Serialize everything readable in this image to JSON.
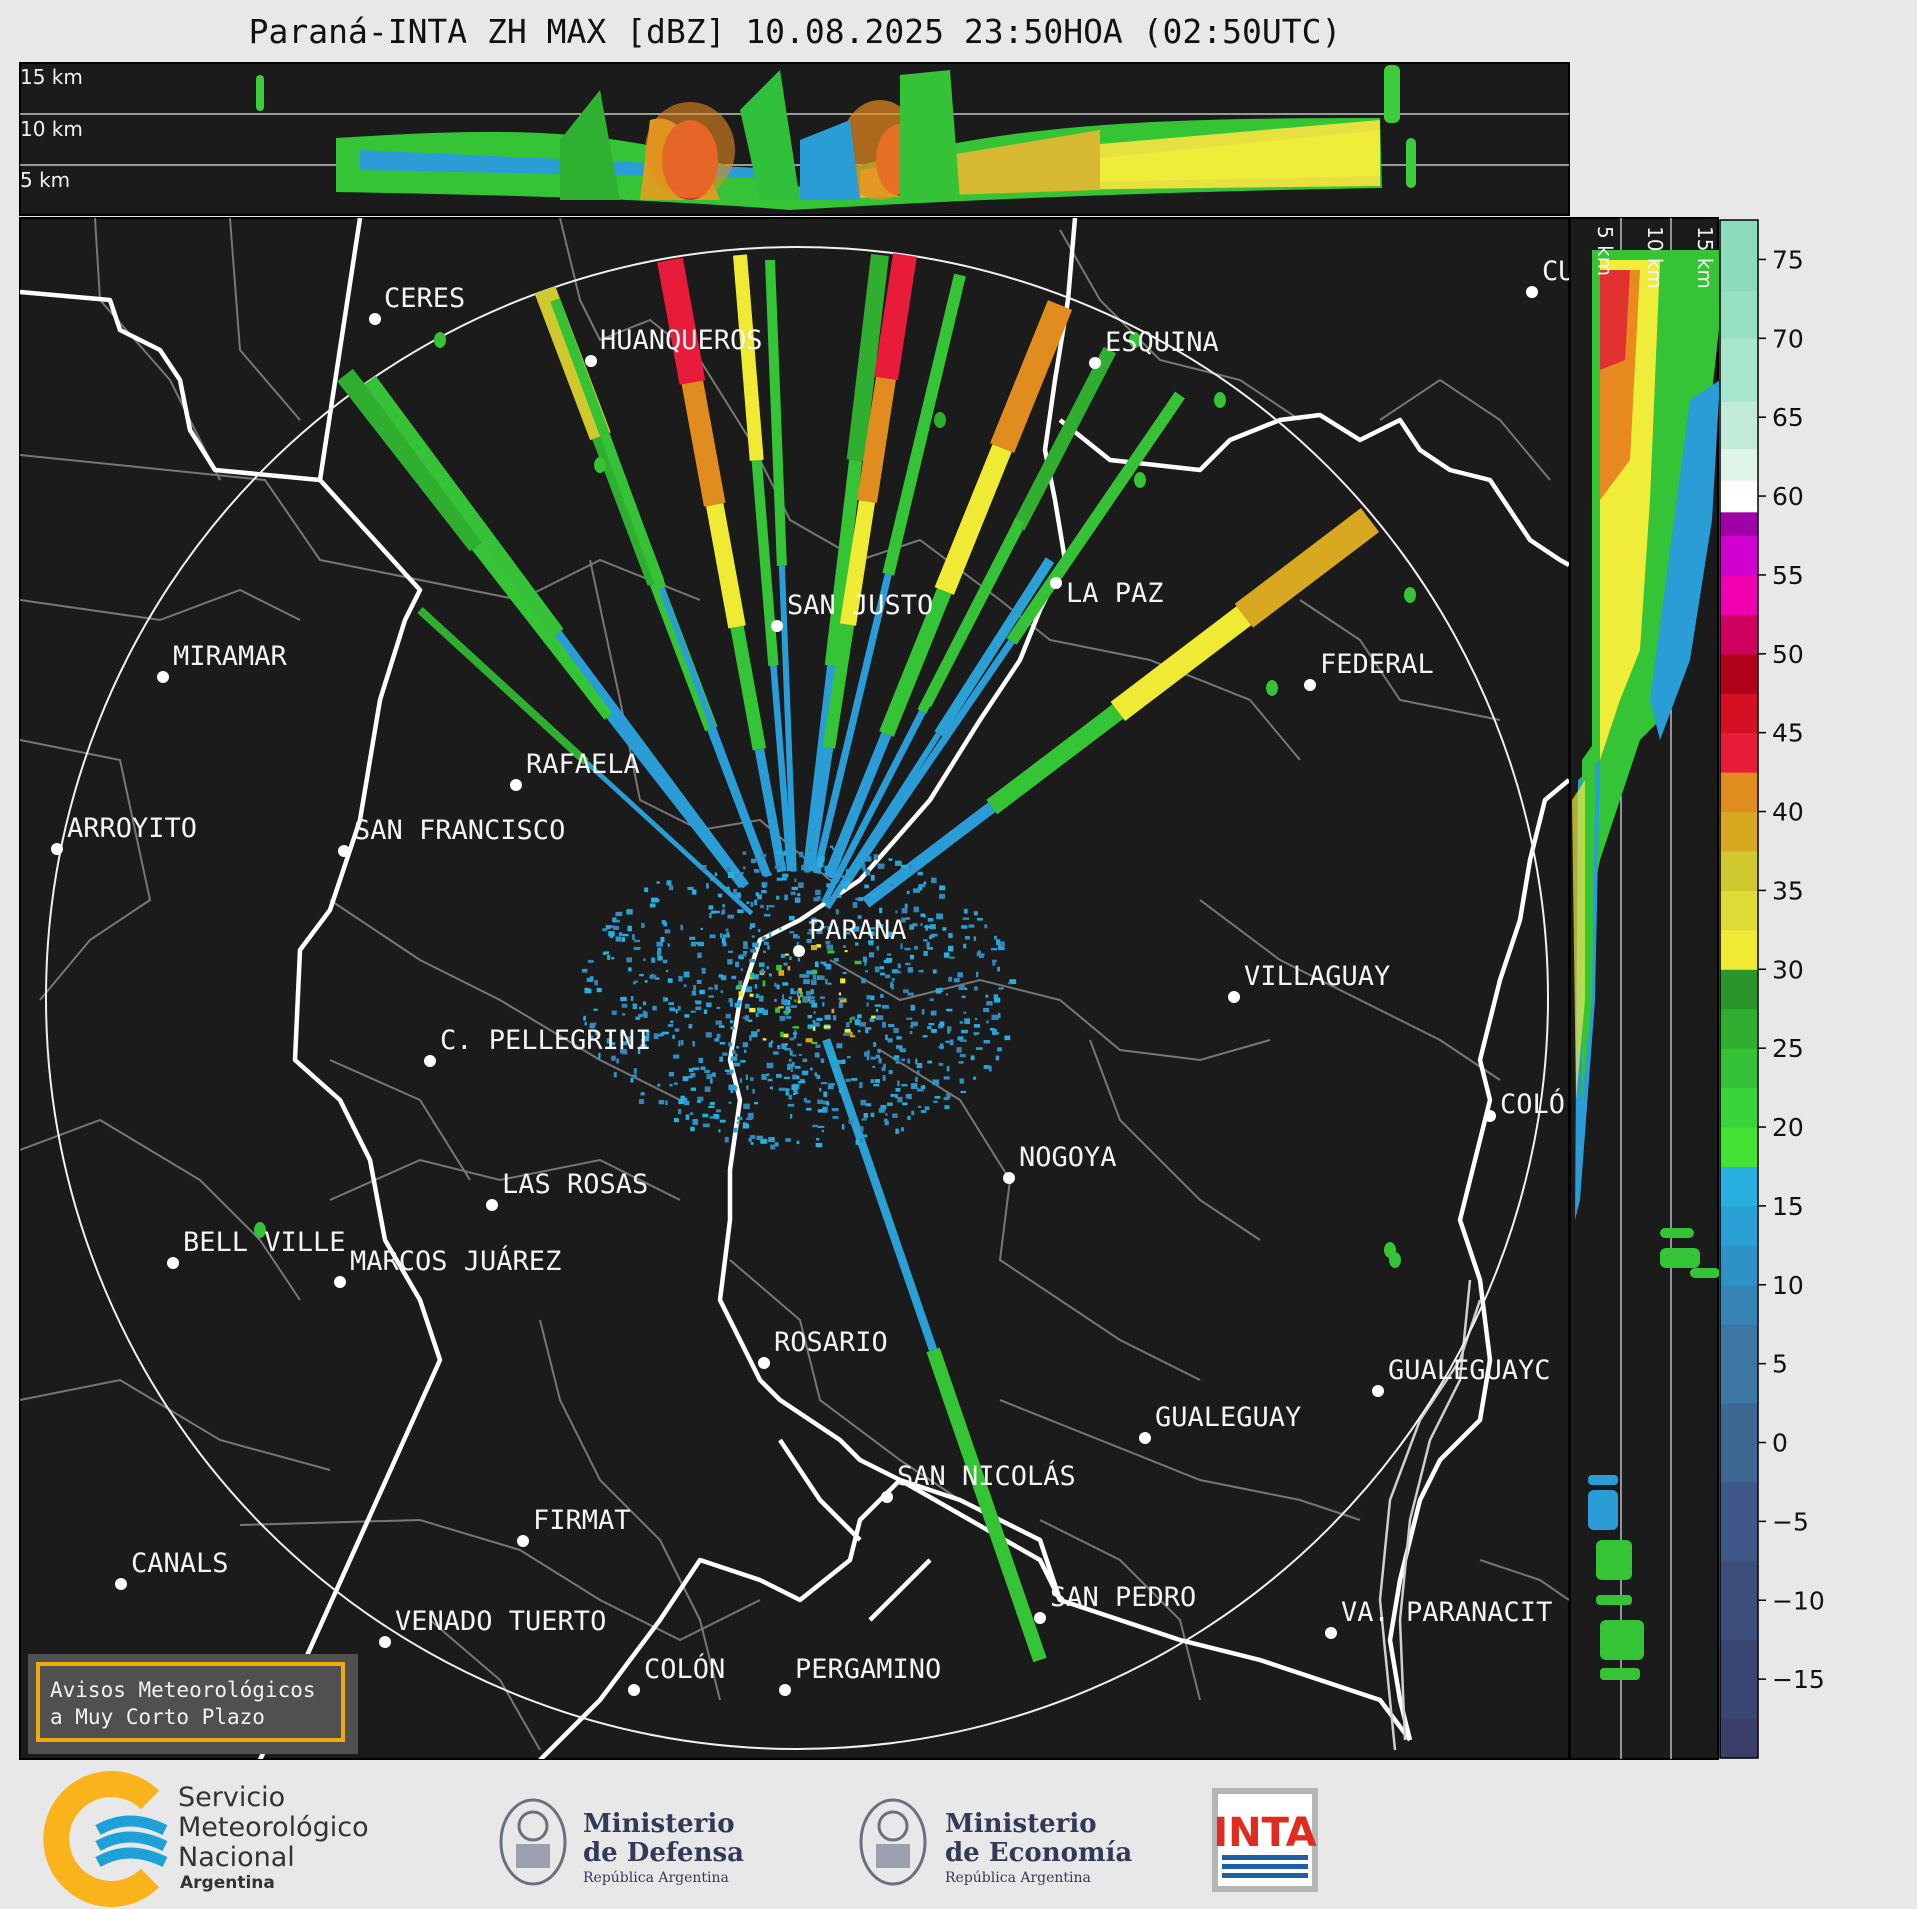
{
  "title": "Paraná-INTA ZH MAX [dBZ] 10.08.2025 23:50HOA (02:50UTC)",
  "top_panel": {
    "height_labels": [
      "15 km",
      "10 km",
      "5 km"
    ]
  },
  "side_panel": {
    "height_labels": [
      "5 km",
      "10 km",
      "15 km"
    ]
  },
  "colorbar": {
    "unit": "dBZ",
    "tick_labels": [
      "75",
      "70",
      "65",
      "60",
      "55",
      "50",
      "45",
      "40",
      "35",
      "30",
      "25",
      "20",
      "15",
      "10",
      "5",
      "0",
      "−5",
      "−10",
      "−15"
    ],
    "ticks": [
      75,
      70,
      65,
      60,
      55,
      50,
      45,
      40,
      35,
      30,
      25,
      20,
      15,
      10,
      5,
      0,
      -5,
      -10,
      -15
    ],
    "range": [
      -20,
      77.5
    ]
  },
  "radar": {
    "name": "PARANÁ"
  },
  "cities": [
    {
      "name": "CERES"
    },
    {
      "name": "HUANQUEROS"
    },
    {
      "name": "ESQUINA"
    },
    {
      "name": "CU"
    },
    {
      "name": "SAN JUSTO"
    },
    {
      "name": "LA PAZ"
    },
    {
      "name": "MIRAMAR"
    },
    {
      "name": "FEDERAL"
    },
    {
      "name": "RAFAELA"
    },
    {
      "name": "ARROYITO"
    },
    {
      "name": "SAN FRANCISCO"
    },
    {
      "name": "PARANA"
    },
    {
      "name": "VILLAGUAY"
    },
    {
      "name": "C. PELLEGRINI"
    },
    {
      "name": "COLÓ"
    },
    {
      "name": "NOGOYA"
    },
    {
      "name": "LAS ROSAS"
    },
    {
      "name": "BELL VILLE"
    },
    {
      "name": "MARCOS JUÁREZ"
    },
    {
      "name": "ROSARIO"
    },
    {
      "name": "GUALEGUAYC"
    },
    {
      "name": "GUALEGUAY"
    },
    {
      "name": "SAN NICOLÁS"
    },
    {
      "name": "FIRMAT"
    },
    {
      "name": "CANALS"
    },
    {
      "name": "SAN PEDRO"
    },
    {
      "name": "VENADO TUERTO"
    },
    {
      "name": "VA. PARANACIT"
    },
    {
      "name": "COLÓN"
    },
    {
      "name": "PERGAMINO"
    }
  ],
  "notice": {
    "line1": "Avisos Meteorológicos",
    "line2": "a Muy Corto Plazo"
  },
  "logos": {
    "smn": {
      "line1": "Servicio",
      "line2": "Meteorológico",
      "line3": "Nacional",
      "line4": "Argentina"
    },
    "defensa": {
      "line1": "Ministerio",
      "line2": "de Defensa",
      "line3": "República Argentina"
    },
    "economia": {
      "line1": "Ministerio",
      "line2": "de Economía",
      "line3": "República Argentina"
    },
    "inta": {
      "text": "INTA"
    }
  }
}
